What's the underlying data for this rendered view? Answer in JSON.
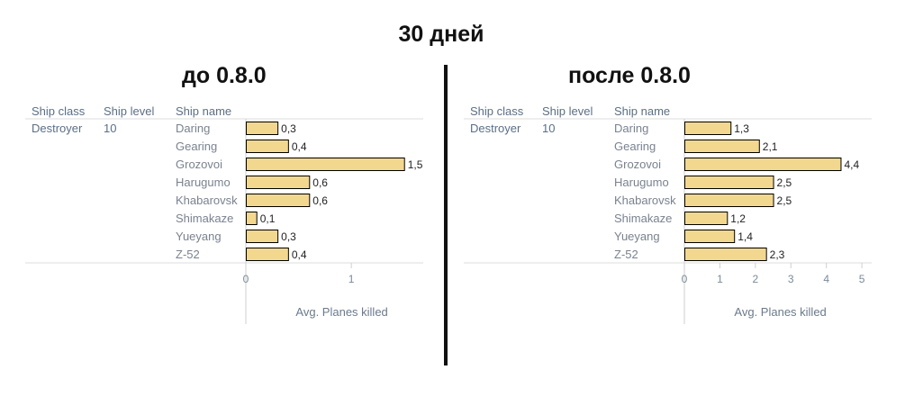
{
  "title": "30 дней",
  "chart_data": [
    {
      "type": "bar",
      "title": "до 0.8.0",
      "columns": [
        "Ship class",
        "Ship level",
        "Ship name"
      ],
      "ship_class": "Destroyer",
      "ship_level": "10",
      "categories": [
        "Daring",
        "Gearing",
        "Grozovoi",
        "Harugumo",
        "Khabarovsk",
        "Shimakaze",
        "Yueyang",
        "Z-52"
      ],
      "values": [
        0.3,
        0.4,
        1.5,
        0.6,
        0.6,
        0.1,
        0.3,
        0.4
      ],
      "value_labels": [
        "0,3",
        "0,4",
        "1,5",
        "0,6",
        "0,6",
        "0,1",
        "0,3",
        "0,4"
      ],
      "xlabel": "Avg. Planes killed",
      "xticks": [
        0,
        1
      ],
      "xlim": [
        0,
        1.75
      ],
      "bar_color": "#f2d78e"
    },
    {
      "type": "bar",
      "title": "после 0.8.0",
      "columns": [
        "Ship class",
        "Ship level",
        "Ship name"
      ],
      "ship_class": "Destroyer",
      "ship_level": "10",
      "categories": [
        "Daring",
        "Gearing",
        "Grozovoi",
        "Harugumo",
        "Khabarovsk",
        "Shimakaze",
        "Yueyang",
        "Z-52"
      ],
      "values": [
        1.3,
        2.1,
        4.4,
        2.5,
        2.5,
        1.2,
        1.4,
        2.3
      ],
      "value_labels": [
        "1,3",
        "2,1",
        "4,4",
        "2,5",
        "2,5",
        "1,2",
        "1,4",
        "2,3"
      ],
      "xlabel": "Avg. Planes killed",
      "xticks": [
        0,
        1,
        2,
        3,
        4,
        5
      ],
      "xlim": [
        0,
        5.2
      ],
      "bar_color": "#f2d78e"
    }
  ]
}
